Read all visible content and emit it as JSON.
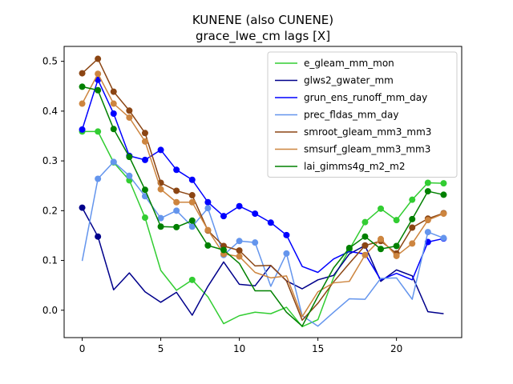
{
  "chart_data": {
    "type": "line",
    "title": "KUNENE (also CUNENE)",
    "subtitle": "grace_lwe_cm lags [X]",
    "xlabel": "",
    "ylabel": "",
    "xlim": [
      -1.15,
      24.15
    ],
    "ylim": [
      -0.055,
      0.53
    ],
    "x_ticks": [
      0,
      5,
      10,
      15,
      20
    ],
    "y_ticks": [
      0.0,
      0.1,
      0.2,
      0.3,
      0.4,
      0.5
    ],
    "y_tick_labels": [
      "0.0",
      "0.1",
      "0.2",
      "0.3",
      "0.4",
      "0.5"
    ],
    "grid": false,
    "legend_position": "top-right",
    "x": [
      0,
      1,
      2,
      3,
      4,
      5,
      6,
      7,
      8,
      9,
      10,
      11,
      12,
      13,
      14,
      15,
      16,
      17,
      18,
      19,
      20,
      21,
      22,
      23
    ],
    "series": [
      {
        "name": "e_gleam_mm_mon",
        "color": "#32cd32",
        "values": [
          0.359,
          0.359,
          0.297,
          0.261,
          0.186,
          0.08,
          0.04,
          0.061,
          0.027,
          -0.027,
          -0.011,
          -0.004,
          -0.007,
          0.006,
          -0.033,
          -0.019,
          0.066,
          0.122,
          0.177,
          0.204,
          0.181,
          0.222,
          0.256,
          0.255
        ],
        "markers": [
          0,
          1,
          2,
          3,
          4,
          7,
          17,
          18,
          19,
          20,
          21,
          22,
          23
        ]
      },
      {
        "name": "glws2_gwater_mm",
        "color": "#00008b",
        "values": [
          0.206,
          0.148,
          0.041,
          0.075,
          0.037,
          0.016,
          0.036,
          -0.01,
          0.048,
          0.097,
          0.052,
          0.049,
          0.09,
          0.059,
          0.043,
          0.061,
          0.07,
          0.113,
          0.13,
          0.058,
          0.081,
          0.069,
          -0.003,
          -0.007
        ],
        "markers": [
          0,
          1,
          18
        ]
      },
      {
        "name": "grun_ens_runoff_mm_day",
        "color": "#0000ff",
        "values": [
          0.363,
          0.463,
          0.395,
          0.31,
          0.302,
          0.322,
          0.282,
          0.262,
          0.217,
          0.189,
          0.209,
          0.194,
          0.176,
          0.151,
          0.088,
          0.076,
          0.103,
          0.118,
          0.113,
          0.061,
          0.074,
          0.061,
          0.137,
          0.144
        ],
        "markers": [
          0,
          1,
          2,
          3,
          4,
          5,
          6,
          7,
          8,
          9,
          10,
          11,
          12,
          13,
          22,
          23
        ]
      },
      {
        "name": "prec_fldas_mm_day",
        "color": "#6495ed",
        "values": [
          0.099,
          0.264,
          0.298,
          0.27,
          0.229,
          0.185,
          0.2,
          0.168,
          0.205,
          0.111,
          0.139,
          0.136,
          0.048,
          0.114,
          -0.011,
          -0.032,
          -0.004,
          0.023,
          0.022,
          0.064,
          0.065,
          0.022,
          0.157,
          0.145
        ],
        "markers": [
          1,
          2,
          3,
          4,
          5,
          6,
          7,
          8,
          9,
          10,
          11,
          13,
          22,
          23
        ]
      },
      {
        "name": "smroot_gleam_mm3_mm3",
        "color": "#8b4513",
        "values": [
          0.476,
          0.505,
          0.439,
          0.401,
          0.356,
          0.256,
          0.24,
          0.231,
          0.16,
          0.129,
          0.12,
          0.089,
          0.09,
          0.059,
          -0.02,
          0.014,
          0.057,
          0.094,
          0.13,
          0.139,
          0.114,
          0.166,
          0.184,
          0.195
        ],
        "markers": [
          0,
          1,
          2,
          3,
          4,
          5,
          6,
          7,
          8,
          9,
          10,
          18,
          19,
          20,
          21,
          22,
          23
        ]
      },
      {
        "name": "smsurf_gleam_mm3_mm3",
        "color": "#cd853f",
        "values": [
          0.415,
          0.475,
          0.415,
          0.387,
          0.339,
          0.243,
          0.217,
          0.217,
          0.161,
          0.113,
          0.108,
          0.076,
          0.065,
          0.069,
          -0.013,
          0.037,
          0.055,
          0.058,
          0.111,
          0.143,
          0.109,
          0.134,
          0.181,
          0.194
        ],
        "markers": [
          0,
          1,
          2,
          3,
          4,
          5,
          6,
          7,
          8,
          9,
          10,
          18,
          19,
          20,
          21,
          22,
          23
        ]
      },
      {
        "name": "lai_gimms4g_m2_m2",
        "color": "#008000",
        "values": [
          0.449,
          0.442,
          0.364,
          0.308,
          0.242,
          0.168,
          0.167,
          0.18,
          0.13,
          0.121,
          0.094,
          0.039,
          0.039,
          -0.004,
          -0.032,
          0.028,
          0.085,
          0.125,
          0.148,
          0.123,
          0.129,
          0.183,
          0.239,
          0.232
        ],
        "markers": [
          0,
          1,
          2,
          3,
          4,
          5,
          6,
          7,
          8,
          9,
          17,
          18,
          19,
          20,
          21,
          22,
          23
        ]
      }
    ]
  }
}
